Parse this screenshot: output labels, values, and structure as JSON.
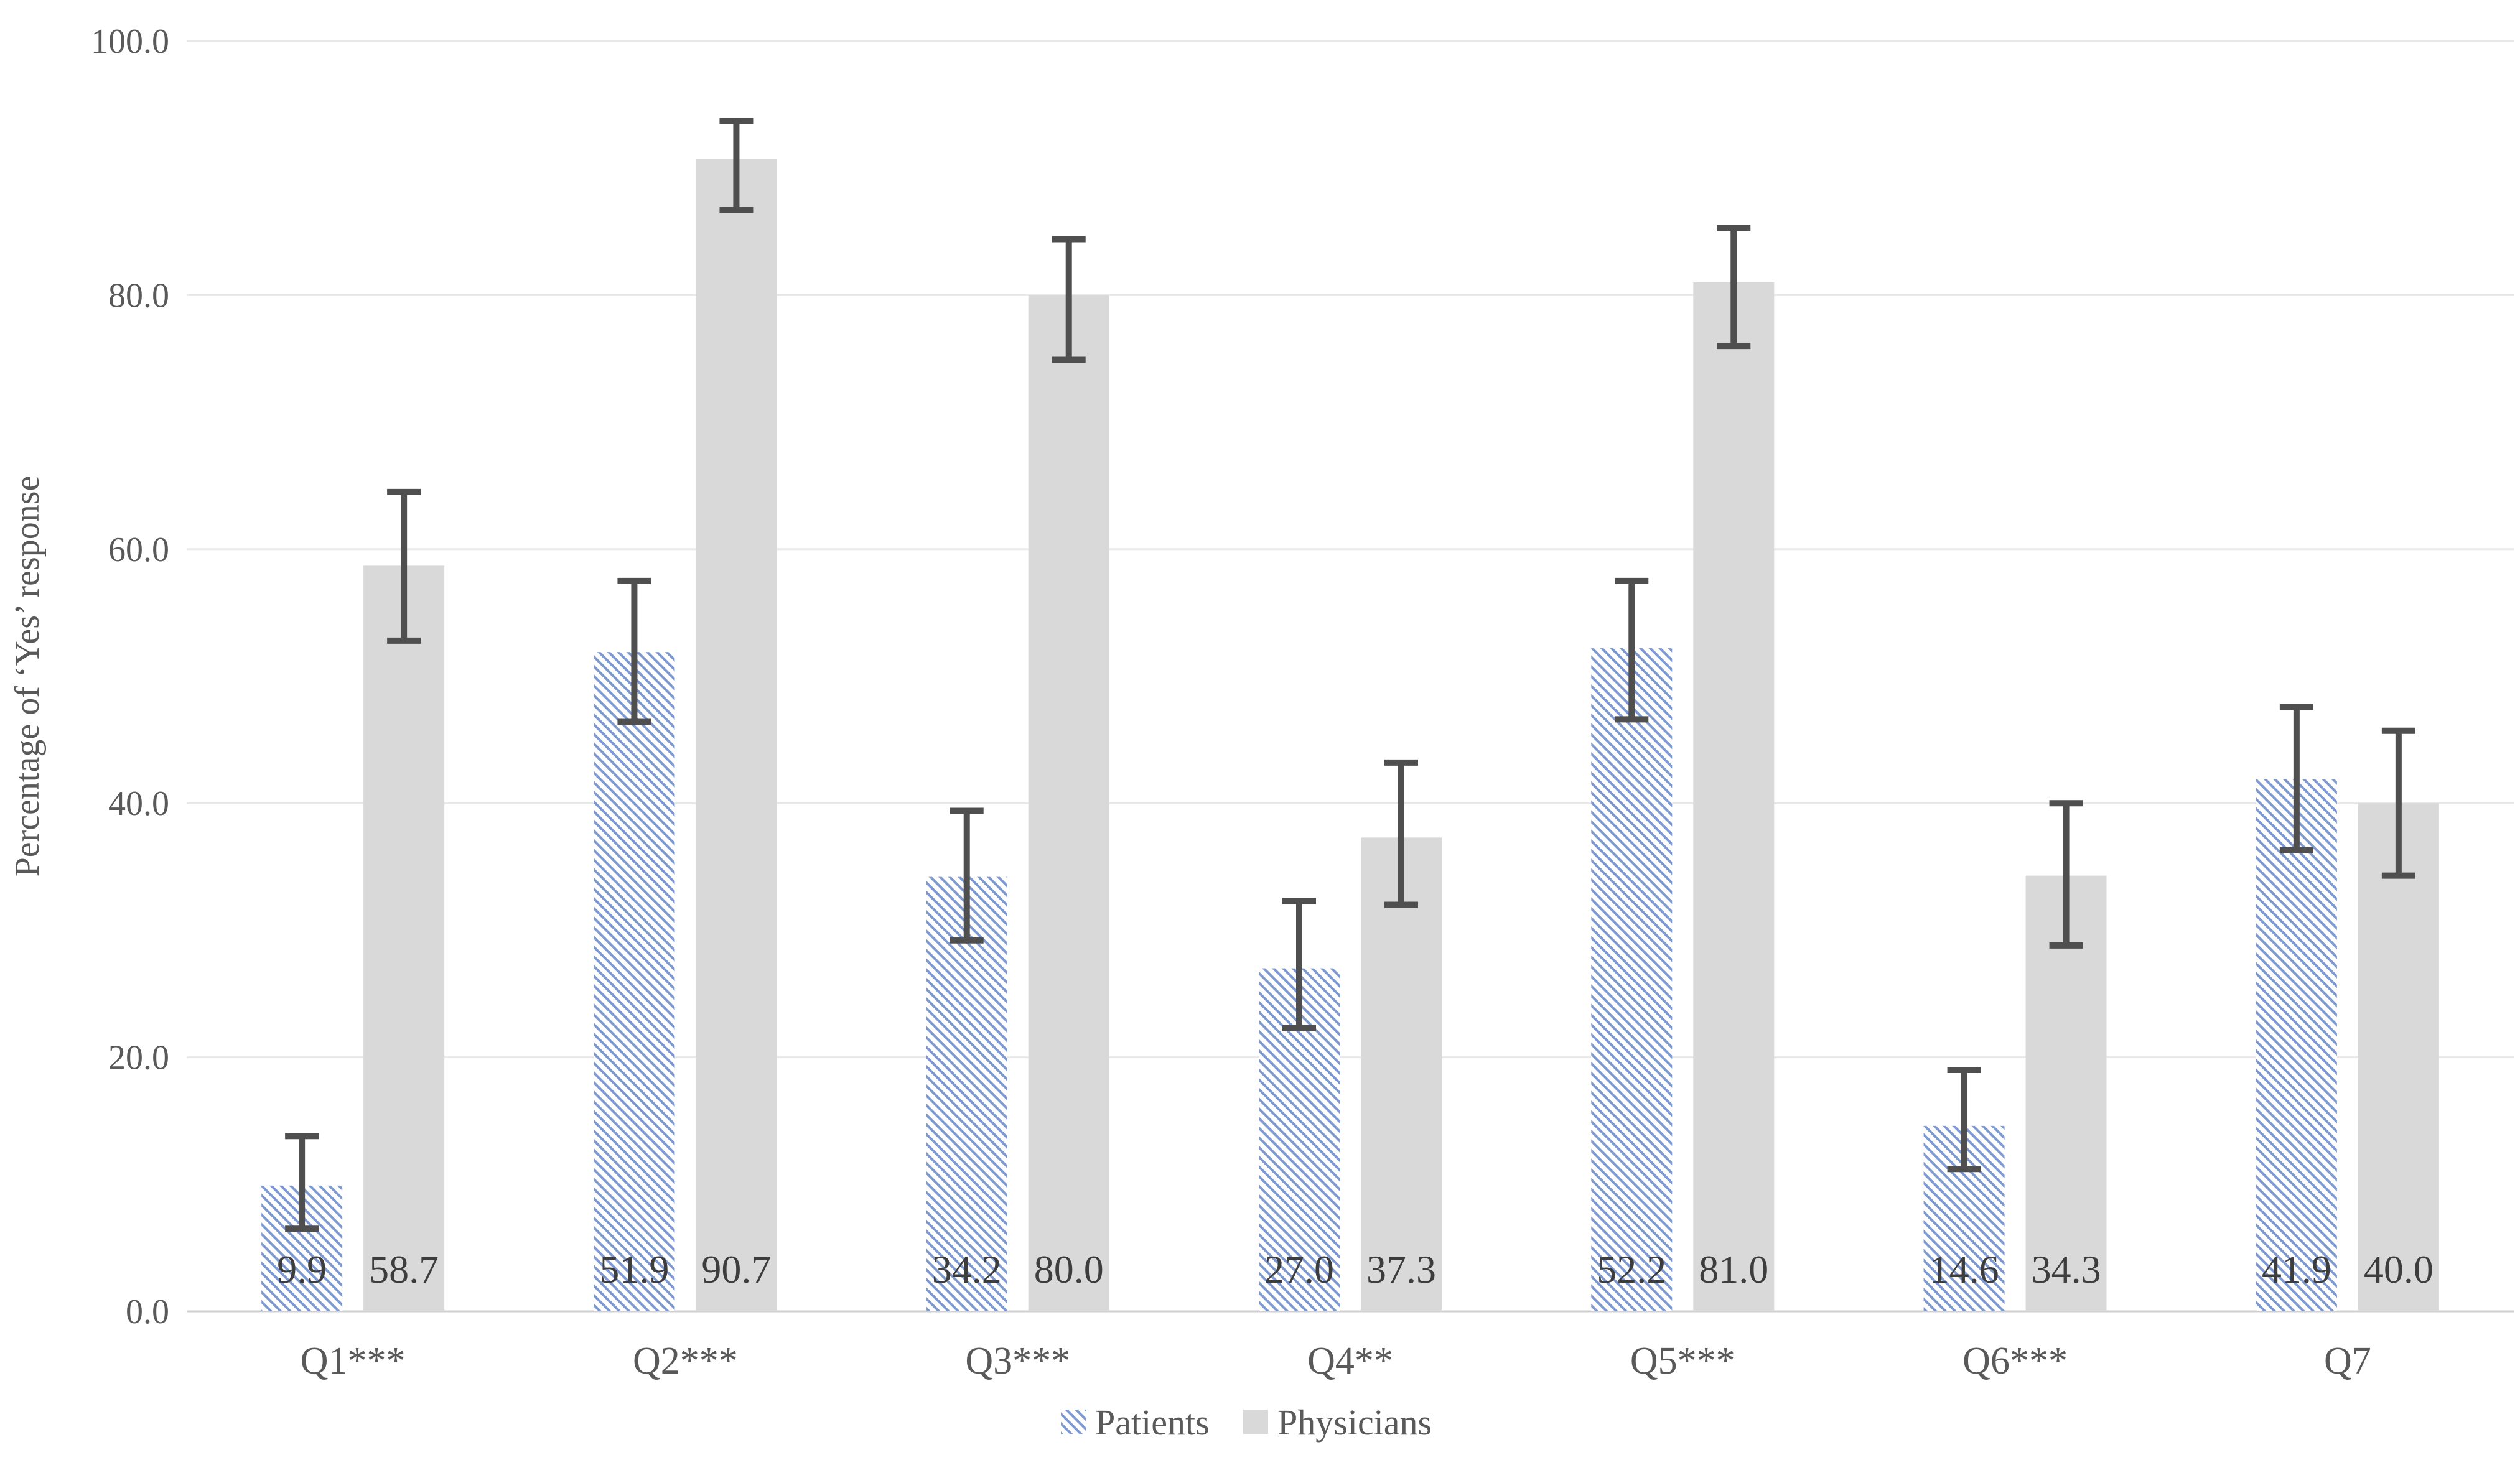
{
  "chart_data": {
    "type": "bar",
    "title": "",
    "xlabel": "",
    "ylabel": "Percentage of ‘Yes’ response",
    "ylim": [
      0,
      100
    ],
    "yticks": [
      0,
      20,
      40,
      60,
      80,
      100
    ],
    "ytick_labels": [
      "0.0",
      "20.0",
      "40.0",
      "60.0",
      "80.0",
      "100.0"
    ],
    "grid": true,
    "legend_position": "bottom-center",
    "categories": [
      "Q1***",
      "Q2***",
      "Q3***",
      "Q4**",
      "Q5***",
      "Q6***",
      "Q7"
    ],
    "series": [
      {
        "name": "Patients",
        "style": "hatched-blue-diagonal",
        "values": [
          9.9,
          51.9,
          34.2,
          27.0,
          52.2,
          14.6,
          41.9
        ],
        "error_low": [
          6.5,
          46.4,
          29.2,
          22.3,
          46.6,
          11.2,
          36.3
        ],
        "error_high": [
          13.8,
          57.5,
          39.4,
          32.3,
          57.5,
          19.0,
          47.6
        ],
        "data_labels": [
          "9.9",
          "51.9",
          "34.2",
          "27.0",
          "52.2",
          "14.6",
          "41.9"
        ]
      },
      {
        "name": "Physicians",
        "style": "solid-gray",
        "values": [
          58.7,
          90.7,
          80.0,
          37.3,
          81.0,
          34.3,
          40.0
        ],
        "error_low": [
          52.8,
          86.7,
          74.9,
          32.0,
          76.0,
          28.8,
          34.3
        ],
        "error_high": [
          64.5,
          93.7,
          84.4,
          43.2,
          85.3,
          40.0,
          45.7
        ],
        "data_labels": [
          "58.7",
          "90.7",
          "80.0",
          "37.3",
          "81.0",
          "34.3",
          "40.0"
        ]
      }
    ]
  },
  "legend": {
    "items": [
      {
        "label": "Patients",
        "swatch": "hatched-blue-diagonal"
      },
      {
        "label": "Physicians",
        "swatch": "solid-gray"
      }
    ]
  },
  "colors": {
    "background": "#FFFFFF",
    "patients_hatch_stripe": "#7E99D0",
    "physicians_fill": "#D9D9D9",
    "error_bar": "#4F4F4F",
    "gridline": "#E8E8E8",
    "baseline": "#D0D0D0",
    "tick_text": "#595959",
    "category_text": "#595959",
    "data_label_text": "#3D3D3D",
    "legend_text": "#595959",
    "axis_title_text": "#595959"
  }
}
